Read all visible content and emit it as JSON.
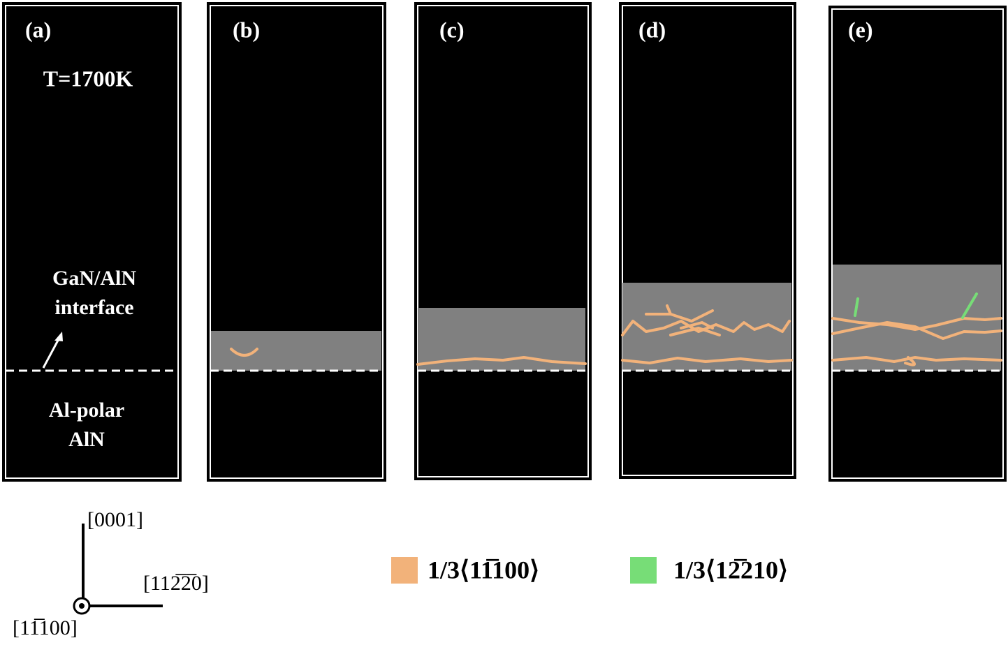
{
  "panels": [
    {
      "label": "(a)"
    },
    {
      "label": "(b)"
    },
    {
      "label": "(c)"
    },
    {
      "label": "(d)"
    },
    {
      "label": "(e)"
    }
  ],
  "annotations": {
    "temperature": "T=1700K",
    "interface_line1": "GaN/AlN",
    "interface_line2": "interface",
    "substrate_line1": "Al-polar",
    "substrate_line2": "AlN"
  },
  "axes": {
    "vertical": "[0001]",
    "horizontal": "[112̅2̅0]",
    "out_of_plane": "[11̅100]"
  },
  "legend": [
    {
      "name": "1/3⟨11̅100⟩",
      "color": "#f2b27a"
    },
    {
      "name": "1/3⟨12̅210⟩",
      "color": "#77dd77"
    }
  ]
}
